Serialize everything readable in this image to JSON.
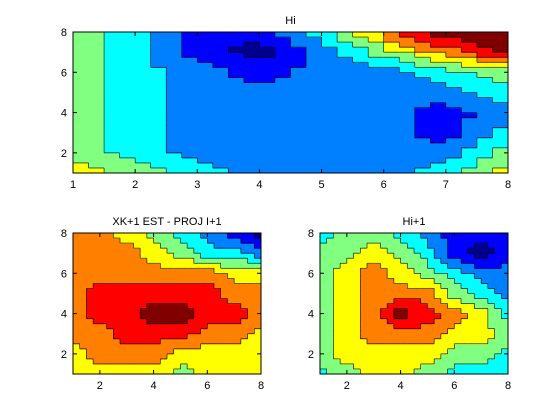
{
  "colormap": [
    "#00008F",
    "#0000FF",
    "#0080FF",
    "#00FFFF",
    "#80FF80",
    "#FFFF00",
    "#FF8000",
    "#FF0000",
    "#800000"
  ],
  "chart_data": [
    {
      "type": "heatmap",
      "subtype": "filled-contour",
      "title": "Hi",
      "x": [
        1,
        2,
        3,
        4,
        5,
        6,
        7,
        8
      ],
      "y": [
        1,
        2,
        3,
        4,
        5,
        6,
        7,
        8
      ],
      "xlim": [
        1,
        8
      ],
      "ylim": [
        1,
        8
      ],
      "xticks": [
        1,
        2,
        3,
        4,
        5,
        6,
        7,
        8
      ],
      "yticks": [
        2,
        4,
        6,
        8
      ],
      "levels": [
        0.5,
        1.5,
        2.5,
        3.5,
        4.5,
        5.5,
        6.5,
        7.5
      ],
      "z": [
        [
          5,
          4,
          3,
          2,
          2,
          2,
          3,
          5
        ],
        [
          4,
          3,
          2,
          2,
          2,
          2,
          2,
          4
        ],
        [
          4,
          3,
          2,
          2,
          2,
          2,
          1,
          3
        ],
        [
          4,
          3,
          2,
          2,
          2,
          2,
          1,
          2
        ],
        [
          4,
          3,
          2,
          2,
          2,
          2,
          2,
          3
        ],
        [
          4,
          3,
          2,
          1,
          2,
          2,
          3,
          4
        ],
        [
          4,
          3,
          1,
          0,
          2,
          4,
          6,
          8
        ],
        [
          4,
          3,
          1,
          1,
          3,
          6,
          8,
          8
        ]
      ]
    },
    {
      "type": "heatmap",
      "subtype": "filled-contour",
      "title": "XK+1 EST - PROJ I+1",
      "x": [
        1,
        2,
        3,
        4,
        5,
        6,
        7,
        8
      ],
      "y": [
        1,
        2,
        3,
        4,
        5,
        6,
        7,
        8
      ],
      "xlim": [
        1,
        8
      ],
      "ylim": [
        1,
        8
      ],
      "xticks": [
        2,
        4,
        6,
        8
      ],
      "yticks": [
        2,
        4,
        6,
        8
      ],
      "levels": [
        0.5,
        1.5,
        2.5,
        3.5,
        4.5,
        5.5,
        6.5,
        7.5
      ],
      "z": [
        [
          5,
          5,
          5,
          5,
          4,
          5,
          5,
          5
        ],
        [
          5,
          6,
          6,
          6,
          5,
          5,
          5,
          5
        ],
        [
          6,
          6,
          7,
          7,
          7,
          6,
          6,
          5
        ],
        [
          6,
          7,
          7,
          8,
          8,
          7,
          7,
          6
        ],
        [
          6,
          7,
          7,
          7,
          7,
          7,
          6,
          6
        ],
        [
          6,
          6,
          6,
          6,
          6,
          6,
          5,
          5
        ],
        [
          6,
          6,
          6,
          5,
          4,
          3,
          3,
          2
        ],
        [
          6,
          6,
          5,
          4,
          3,
          2,
          1,
          0
        ]
      ]
    },
    {
      "type": "heatmap",
      "subtype": "filled-contour",
      "title": "Hi+1",
      "x": [
        1,
        2,
        3,
        4,
        5,
        6,
        7,
        8
      ],
      "y": [
        1,
        2,
        3,
        4,
        5,
        6,
        7,
        8
      ],
      "xlim": [
        1,
        8
      ],
      "ylim": [
        1,
        8
      ],
      "xticks": [
        2,
        4,
        6,
        8
      ],
      "yticks": [
        2,
        4,
        6,
        8
      ],
      "levels": [
        0.5,
        1.5,
        2.5,
        3.5,
        4.5,
        5.5,
        6.5,
        7.5
      ],
      "z": [
        [
          3,
          4,
          5,
          5,
          4,
          3,
          3,
          3
        ],
        [
          4,
          5,
          5,
          5,
          5,
          4,
          4,
          3
        ],
        [
          4,
          5,
          6,
          6,
          6,
          5,
          5,
          4
        ],
        [
          4,
          5,
          6,
          8,
          7,
          6,
          5,
          3
        ],
        [
          4,
          5,
          6,
          6,
          6,
          4,
          3,
          2
        ],
        [
          4,
          5,
          6,
          5,
          4,
          3,
          2,
          2
        ],
        [
          4,
          4,
          5,
          4,
          3,
          1,
          0,
          1
        ],
        [
          3,
          4,
          4,
          3,
          2,
          1,
          1,
          1
        ]
      ]
    }
  ]
}
